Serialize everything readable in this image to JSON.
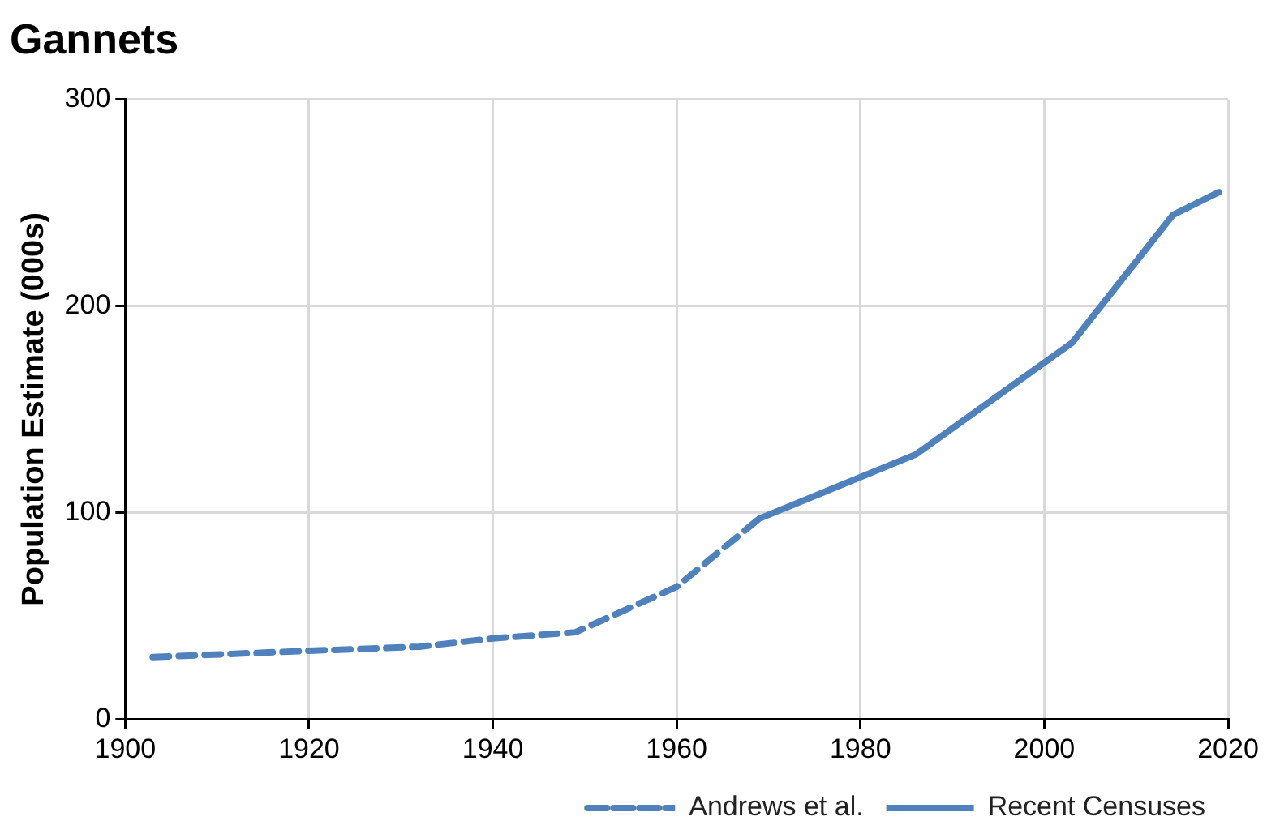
{
  "chart_data": {
    "type": "line",
    "title": "Gannets",
    "ylabel": "Population Estimate (000s)",
    "series": [
      {
        "name": "Andrews et al.",
        "color": "#4f81bd",
        "line_style": "dashed",
        "x": [
          1903,
          1920,
          1932,
          1940,
          1949,
          1960,
          1969
        ],
        "values": [
          30,
          33,
          35,
          39,
          42,
          64,
          97
        ]
      },
      {
        "name": "Recent Censuses",
        "color": "#4f81bd",
        "line_style": "solid",
        "x": [
          1969,
          1986,
          2003,
          2014,
          2019
        ],
        "values": [
          97,
          128,
          182,
          244,
          255
        ]
      }
    ],
    "xlim": [
      1900,
      2020
    ],
    "xticks": [
      1900,
      1920,
      1940,
      1960,
      1980,
      2000,
      2020
    ],
    "ylim": [
      0,
      300
    ],
    "yticks": [
      0,
      100,
      200,
      300
    ],
    "grid": true,
    "legend": "bottom right",
    "marker": "none"
  }
}
